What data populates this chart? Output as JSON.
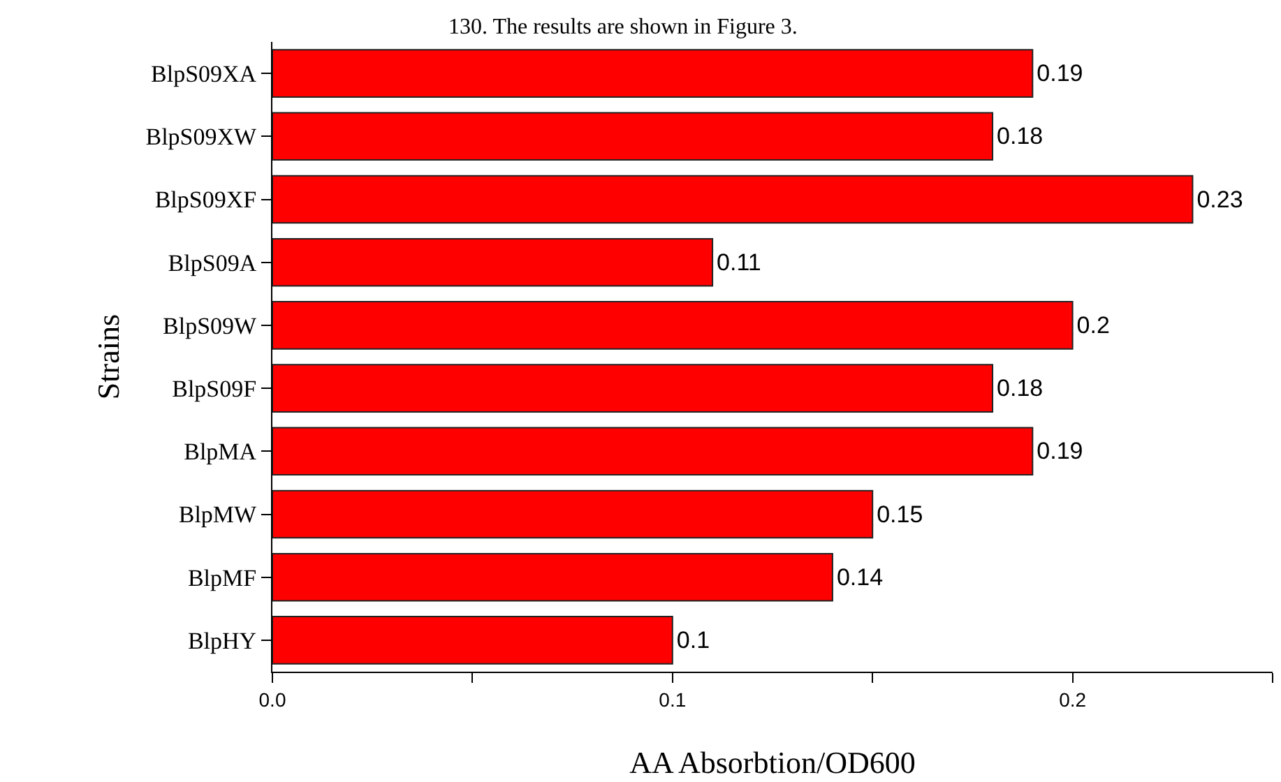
{
  "chart_data": {
    "type": "bar",
    "orientation": "horizontal",
    "categories": [
      "BlpS09XA",
      "BlpS09XW",
      "BlpS09XF",
      "BlpS09A",
      "BlpS09W",
      "BlpS09F",
      "BlpMA",
      "BlpMW",
      "BlpMF",
      "BlpHY"
    ],
    "values": [
      0.19,
      0.18,
      0.23,
      0.11,
      0.2,
      0.18,
      0.19,
      0.15,
      0.14,
      0.1
    ],
    "color": "#ff0000",
    "data_labels": true,
    "xlabel": "AA Absorbtion/OD600",
    "ylabel": "Strains",
    "xlim": [
      0,
      0.25
    ],
    "xticks": [
      {
        "value": 0,
        "label": "0.0"
      },
      {
        "value": 0.05,
        "label": null
      },
      0.1,
      {
        "value": 0.15,
        "label": null
      },
      0.2,
      {
        "value": 0.25,
        "label": null
      }
    ],
    "legend": false,
    "annotations": [
      "130. The results are shown in Figure 3."
    ]
  }
}
